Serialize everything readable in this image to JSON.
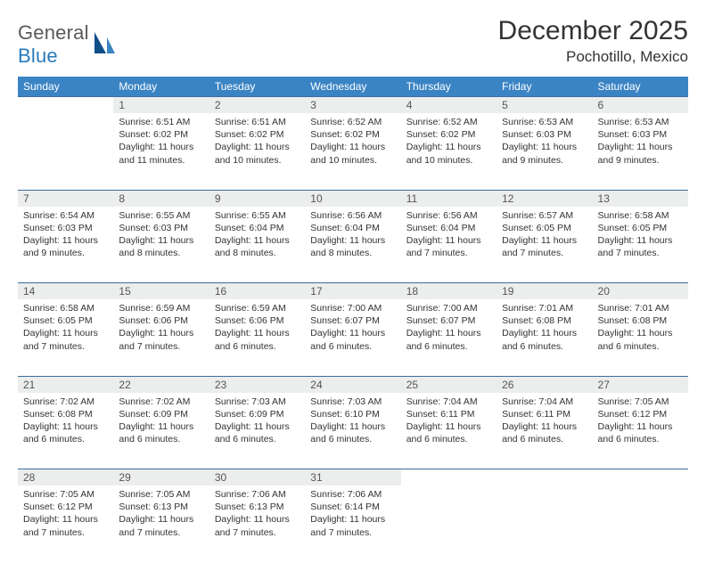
{
  "brand": {
    "general": "General",
    "blue": "Blue"
  },
  "title": "December 2025",
  "location": "Pochotillo, Mexico",
  "colors": {
    "header_bg": "#3b84c4",
    "header_text": "#ffffff",
    "daynum_bg": "#eceded",
    "rule": "#3b6ea0",
    "body_text": "#333333",
    "logo_gray": "#5a5a5a",
    "logo_blue": "#2a7ab8",
    "sail_dark": "#0f4f8a",
    "sail_light": "#3b84c4"
  },
  "weekdays": [
    "Sunday",
    "Monday",
    "Tuesday",
    "Wednesday",
    "Thursday",
    "Friday",
    "Saturday"
  ],
  "weeks": [
    [
      null,
      {
        "n": "1",
        "sr": "6:51 AM",
        "ss": "6:02 PM",
        "dl": "11 hours and 11 minutes."
      },
      {
        "n": "2",
        "sr": "6:51 AM",
        "ss": "6:02 PM",
        "dl": "11 hours and 10 minutes."
      },
      {
        "n": "3",
        "sr": "6:52 AM",
        "ss": "6:02 PM",
        "dl": "11 hours and 10 minutes."
      },
      {
        "n": "4",
        "sr": "6:52 AM",
        "ss": "6:02 PM",
        "dl": "11 hours and 10 minutes."
      },
      {
        "n": "5",
        "sr": "6:53 AM",
        "ss": "6:03 PM",
        "dl": "11 hours and 9 minutes."
      },
      {
        "n": "6",
        "sr": "6:53 AM",
        "ss": "6:03 PM",
        "dl": "11 hours and 9 minutes."
      }
    ],
    [
      {
        "n": "7",
        "sr": "6:54 AM",
        "ss": "6:03 PM",
        "dl": "11 hours and 9 minutes."
      },
      {
        "n": "8",
        "sr": "6:55 AM",
        "ss": "6:03 PM",
        "dl": "11 hours and 8 minutes."
      },
      {
        "n": "9",
        "sr": "6:55 AM",
        "ss": "6:04 PM",
        "dl": "11 hours and 8 minutes."
      },
      {
        "n": "10",
        "sr": "6:56 AM",
        "ss": "6:04 PM",
        "dl": "11 hours and 8 minutes."
      },
      {
        "n": "11",
        "sr": "6:56 AM",
        "ss": "6:04 PM",
        "dl": "11 hours and 7 minutes."
      },
      {
        "n": "12",
        "sr": "6:57 AM",
        "ss": "6:05 PM",
        "dl": "11 hours and 7 minutes."
      },
      {
        "n": "13",
        "sr": "6:58 AM",
        "ss": "6:05 PM",
        "dl": "11 hours and 7 minutes."
      }
    ],
    [
      {
        "n": "14",
        "sr": "6:58 AM",
        "ss": "6:05 PM",
        "dl": "11 hours and 7 minutes."
      },
      {
        "n": "15",
        "sr": "6:59 AM",
        "ss": "6:06 PM",
        "dl": "11 hours and 7 minutes."
      },
      {
        "n": "16",
        "sr": "6:59 AM",
        "ss": "6:06 PM",
        "dl": "11 hours and 6 minutes."
      },
      {
        "n": "17",
        "sr": "7:00 AM",
        "ss": "6:07 PM",
        "dl": "11 hours and 6 minutes."
      },
      {
        "n": "18",
        "sr": "7:00 AM",
        "ss": "6:07 PM",
        "dl": "11 hours and 6 minutes."
      },
      {
        "n": "19",
        "sr": "7:01 AM",
        "ss": "6:08 PM",
        "dl": "11 hours and 6 minutes."
      },
      {
        "n": "20",
        "sr": "7:01 AM",
        "ss": "6:08 PM",
        "dl": "11 hours and 6 minutes."
      }
    ],
    [
      {
        "n": "21",
        "sr": "7:02 AM",
        "ss": "6:08 PM",
        "dl": "11 hours and 6 minutes."
      },
      {
        "n": "22",
        "sr": "7:02 AM",
        "ss": "6:09 PM",
        "dl": "11 hours and 6 minutes."
      },
      {
        "n": "23",
        "sr": "7:03 AM",
        "ss": "6:09 PM",
        "dl": "11 hours and 6 minutes."
      },
      {
        "n": "24",
        "sr": "7:03 AM",
        "ss": "6:10 PM",
        "dl": "11 hours and 6 minutes."
      },
      {
        "n": "25",
        "sr": "7:04 AM",
        "ss": "6:11 PM",
        "dl": "11 hours and 6 minutes."
      },
      {
        "n": "26",
        "sr": "7:04 AM",
        "ss": "6:11 PM",
        "dl": "11 hours and 6 minutes."
      },
      {
        "n": "27",
        "sr": "7:05 AM",
        "ss": "6:12 PM",
        "dl": "11 hours and 6 minutes."
      }
    ],
    [
      {
        "n": "28",
        "sr": "7:05 AM",
        "ss": "6:12 PM",
        "dl": "11 hours and 7 minutes."
      },
      {
        "n": "29",
        "sr": "7:05 AM",
        "ss": "6:13 PM",
        "dl": "11 hours and 7 minutes."
      },
      {
        "n": "30",
        "sr": "7:06 AM",
        "ss": "6:13 PM",
        "dl": "11 hours and 7 minutes."
      },
      {
        "n": "31",
        "sr": "7:06 AM",
        "ss": "6:14 PM",
        "dl": "11 hours and 7 minutes."
      },
      null,
      null,
      null
    ]
  ],
  "labels": {
    "sunrise": "Sunrise:",
    "sunset": "Sunset:",
    "daylight": "Daylight:"
  }
}
